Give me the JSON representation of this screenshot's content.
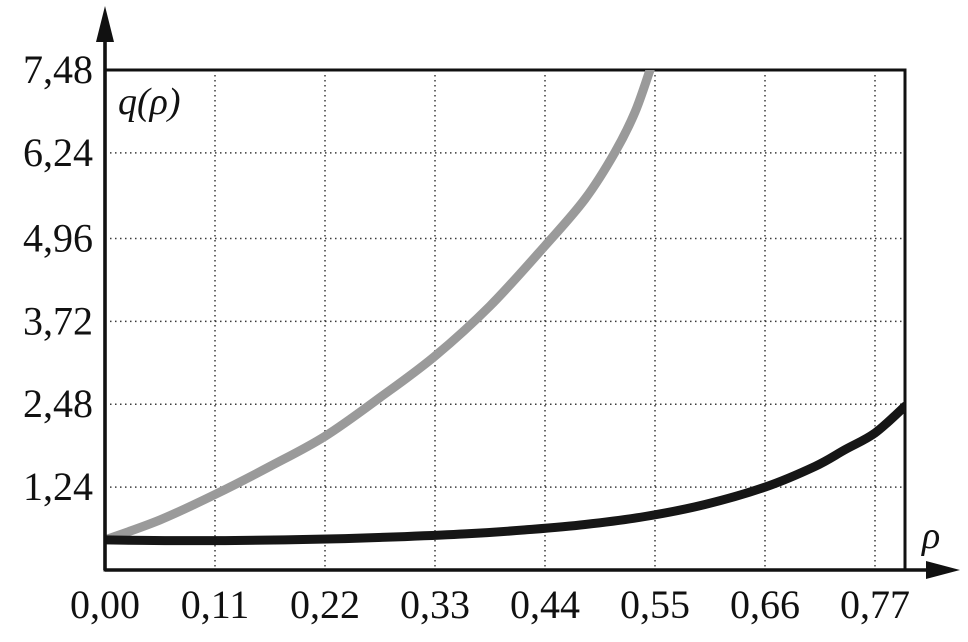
{
  "chart_data": {
    "type": "line",
    "title": "",
    "xlabel": "ρ",
    "ylabel": "q(ρ)",
    "xlim": [
      0,
      0.8
    ],
    "ylim": [
      0,
      7.48
    ],
    "grid": "dotted",
    "legend": "none",
    "background": "#ffffff",
    "x_ticks": [
      {
        "v": 0.0,
        "label": "0,00"
      },
      {
        "v": 0.11,
        "label": "0,11"
      },
      {
        "v": 0.22,
        "label": "0,22"
      },
      {
        "v": 0.33,
        "label": "0,33"
      },
      {
        "v": 0.44,
        "label": "0,44"
      },
      {
        "v": 0.55,
        "label": "0,55"
      },
      {
        "v": 0.66,
        "label": "0,66"
      },
      {
        "v": 0.77,
        "label": "0,77"
      }
    ],
    "y_ticks": [
      {
        "v": 1.24,
        "label": "1,24"
      },
      {
        "v": 2.48,
        "label": "2,48"
      },
      {
        "v": 3.72,
        "label": "3,72"
      },
      {
        "v": 4.96,
        "label": "4,96"
      },
      {
        "v": 6.24,
        "label": "6,24"
      },
      {
        "v": 7.48,
        "label": "7,48"
      }
    ],
    "series": [
      {
        "name": "gray-curve",
        "color": "#9a9a9a",
        "width": 9,
        "points": [
          [
            0.0,
            0.45
          ],
          [
            0.055,
            0.75
          ],
          [
            0.11,
            1.13
          ],
          [
            0.165,
            1.55
          ],
          [
            0.22,
            2.0
          ],
          [
            0.275,
            2.58
          ],
          [
            0.33,
            3.2
          ],
          [
            0.385,
            3.95
          ],
          [
            0.44,
            4.85
          ],
          [
            0.48,
            5.55
          ],
          [
            0.51,
            6.25
          ],
          [
            0.53,
            6.85
          ],
          [
            0.545,
            7.48
          ],
          [
            0.556,
            7.95
          ]
        ]
      },
      {
        "name": "black-curve",
        "color": "#161616",
        "width": 9,
        "points": [
          [
            0.0,
            0.45
          ],
          [
            0.06,
            0.44
          ],
          [
            0.12,
            0.44
          ],
          [
            0.18,
            0.45
          ],
          [
            0.24,
            0.47
          ],
          [
            0.3,
            0.5
          ],
          [
            0.36,
            0.54
          ],
          [
            0.42,
            0.6
          ],
          [
            0.48,
            0.68
          ],
          [
            0.54,
            0.8
          ],
          [
            0.6,
            0.98
          ],
          [
            0.66,
            1.24
          ],
          [
            0.71,
            1.55
          ],
          [
            0.74,
            1.8
          ],
          [
            0.77,
            2.05
          ],
          [
            0.8,
            2.45
          ]
        ]
      }
    ]
  }
}
